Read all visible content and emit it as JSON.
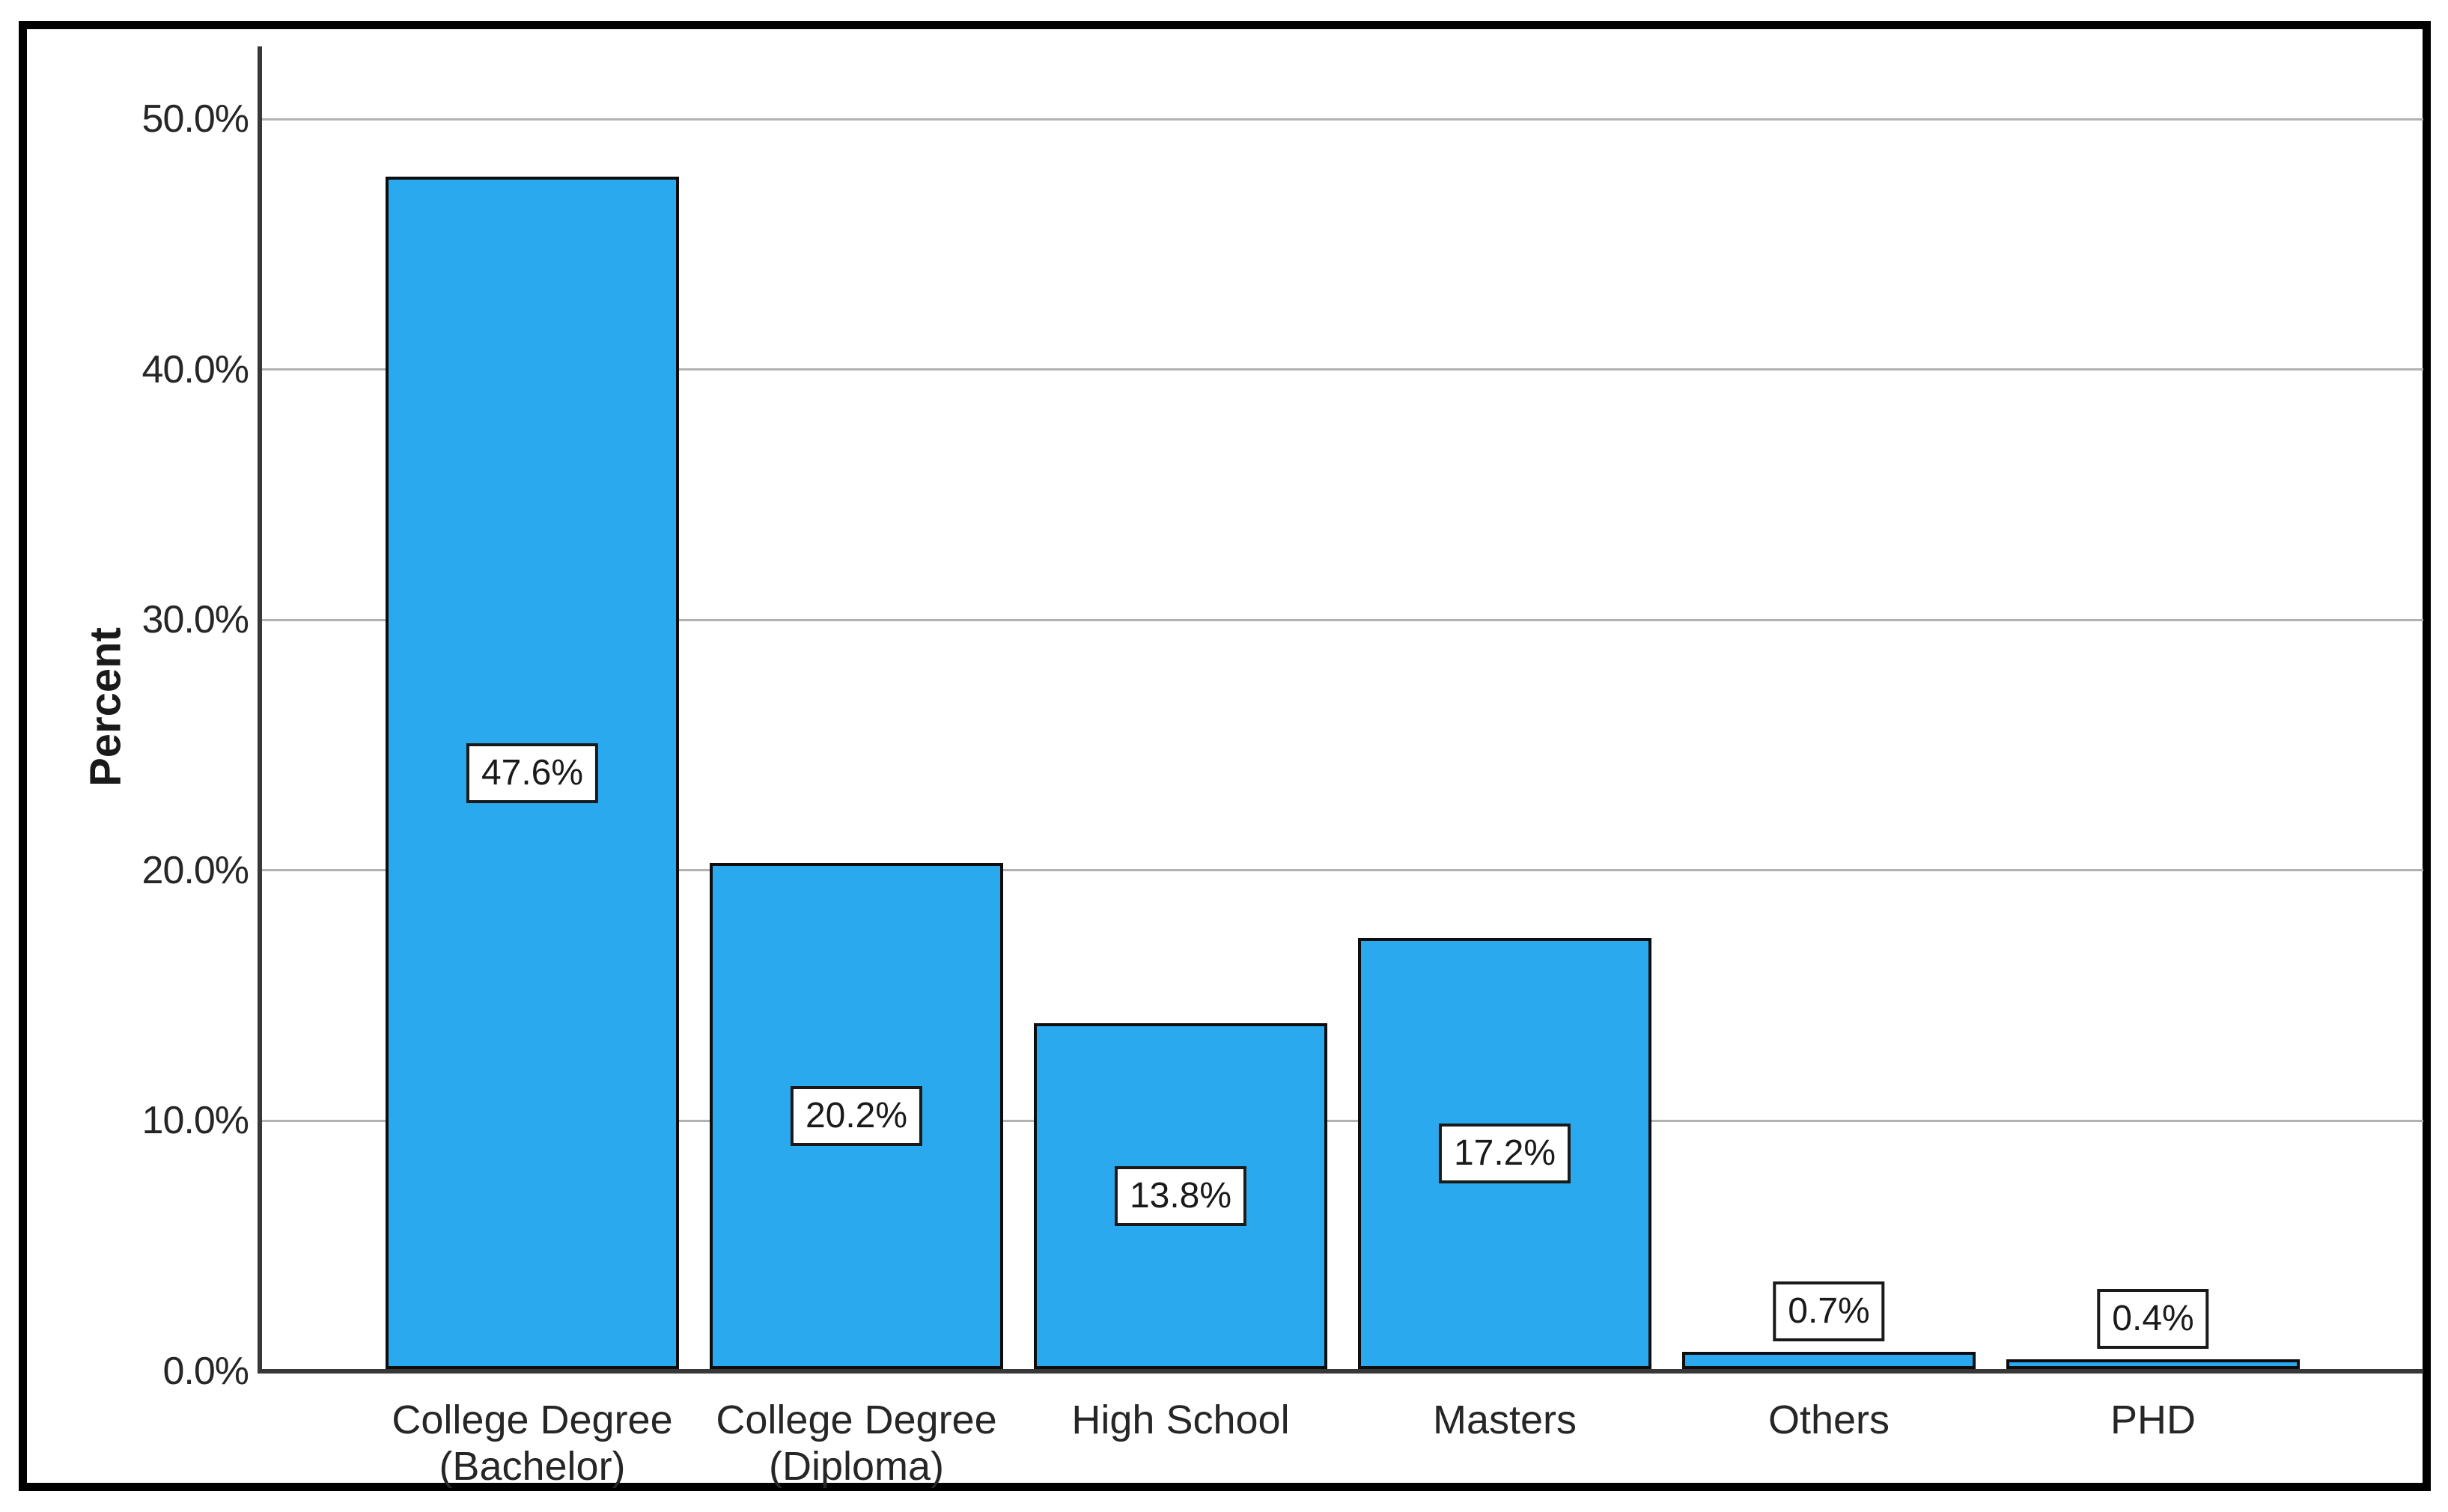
{
  "chart_data": {
    "type": "bar",
    "title": "",
    "xlabel": "",
    "ylabel": "Percent",
    "categories": [
      [
        "College Degree",
        "(Bachelor)"
      ],
      [
        "College Degree",
        "(Diploma)"
      ],
      [
        "High School"
      ],
      [
        "Masters"
      ],
      [
        "Others"
      ],
      [
        "PHD"
      ]
    ],
    "values": [
      47.6,
      20.2,
      13.8,
      17.2,
      0.7,
      0.4
    ],
    "value_labels": [
      "47.6%",
      "20.2%",
      "13.8%",
      "17.2%",
      "0.7%",
      "0.4%"
    ],
    "value_label_placement": [
      "inside",
      "inside",
      "inside",
      "inside",
      "above",
      "above"
    ],
    "yticks": [
      {
        "value": 0,
        "label": "0.0%"
      },
      {
        "value": 10,
        "label": "10.0%"
      },
      {
        "value": 20,
        "label": "20.0%"
      },
      {
        "value": 30,
        "label": "30.0%"
      },
      {
        "value": 40,
        "label": "40.0%"
      },
      {
        "value": 50,
        "label": "50.0%"
      }
    ],
    "ylim": [
      0,
      52.9
    ],
    "grid": true,
    "legend": "none",
    "colors": {
      "bar_fill": "#2AA9EE",
      "bar_border": "#0d0d0d",
      "gridline": "#b2b2b2",
      "axis": "#383838",
      "frame_border": "#000000",
      "background": "#ffffff",
      "label_box_bg": "#ffffff",
      "label_box_border": "#1a1a1a",
      "text": "#262626"
    }
  }
}
